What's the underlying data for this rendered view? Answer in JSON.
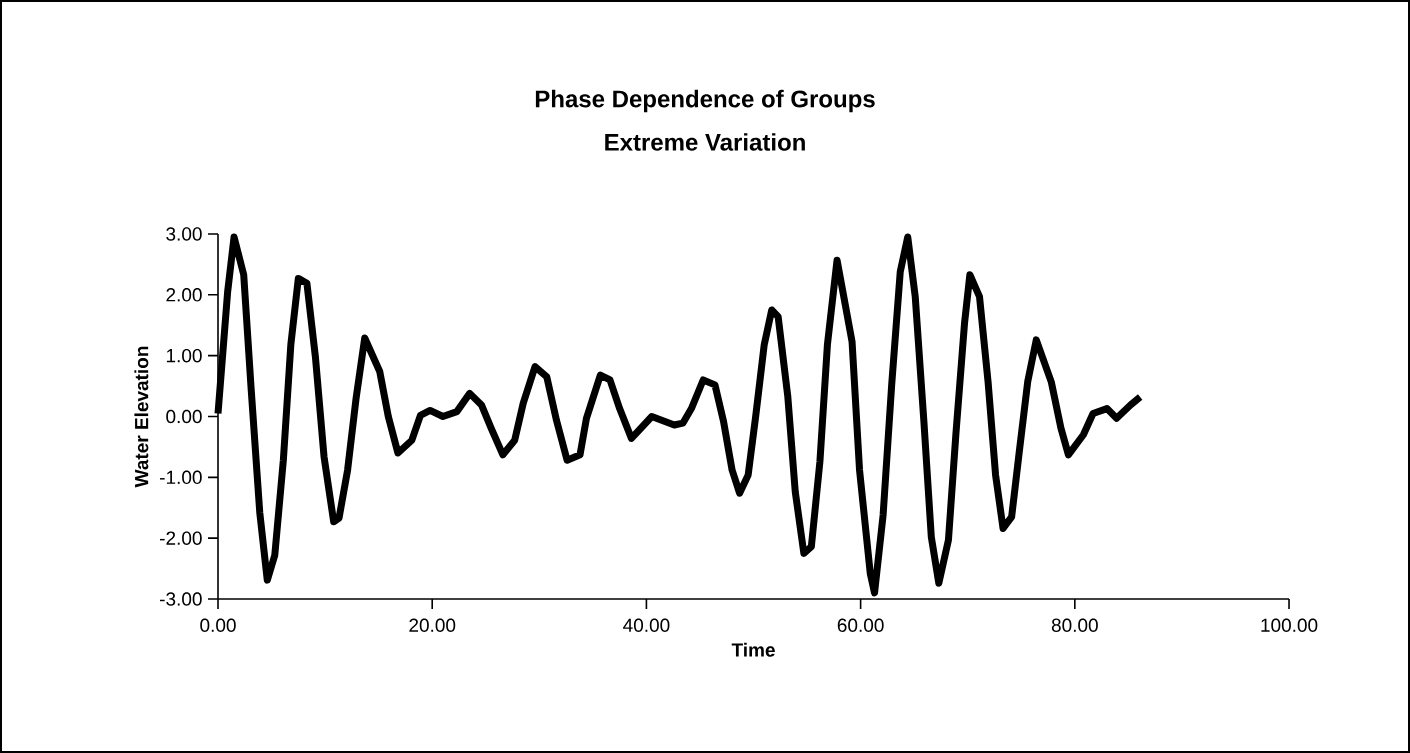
{
  "chart_data": {
    "type": "line",
    "title": "Phase Dependence of Groups",
    "subtitle": "Extreme Variation",
    "xlabel": "Time",
    "ylabel": "Water Elevation",
    "x": [
      0,
      0.9,
      1.5,
      2.4,
      3.1,
      3.9,
      4.6,
      5.3,
      6.1,
      6.8,
      7.5,
      8.3,
      9.1,
      9.9,
      10.8,
      11.3,
      12.1,
      12.9,
      13.7,
      15.1,
      15.9,
      16.8,
      18.1,
      18.9,
      19.8,
      21.0,
      22.3,
      23.5,
      24.6,
      25.5,
      26.6,
      27.7,
      28.5,
      29.6,
      30.7,
      31.6,
      32.6,
      33.8,
      34.4,
      35.7,
      36.6,
      37.5,
      38.6,
      40.5,
      42.6,
      43.4,
      44.2,
      45.3,
      46.4,
      47.2,
      48.0,
      48.7,
      49.5,
      50.2,
      51.0,
      51.7,
      52.3,
      53.2,
      53.9,
      54.7,
      55.4,
      56.2,
      56.9,
      57.8,
      59.2,
      59.9,
      60.9,
      61.3,
      62.1,
      62.9,
      63.7,
      64.4,
      65.1,
      65.9,
      66.6,
      67.3,
      68.2,
      68.9,
      69.7,
      70.2,
      71.1,
      71.9,
      72.6,
      73.3,
      74.1,
      74.8,
      75.6,
      76.4,
      77.8,
      78.7,
      79.4,
      80.8,
      81.7,
      83.0,
      83.9,
      85.2,
      86.1
    ],
    "series": [
      {
        "color": "#000000",
        "values": [
          0.05,
          2.05,
          2.95,
          2.33,
          0.44,
          -1.58,
          -2.69,
          -2.28,
          -0.72,
          1.18,
          2.27,
          2.19,
          0.97,
          -0.66,
          -1.73,
          -1.67,
          -0.88,
          0.31,
          1.29,
          0.74,
          0.0,
          -0.6,
          -0.39,
          0.02,
          0.1,
          0.0,
          0.08,
          0.38,
          0.19,
          -0.19,
          -0.63,
          -0.39,
          0.22,
          0.82,
          0.65,
          -0.06,
          -0.72,
          -0.63,
          -0.03,
          0.68,
          0.6,
          0.13,
          -0.36,
          0.0,
          -0.14,
          -0.11,
          0.13,
          0.6,
          0.52,
          -0.08,
          -0.88,
          -1.26,
          -0.96,
          0.0,
          1.18,
          1.75,
          1.64,
          0.33,
          -1.24,
          -2.25,
          -2.14,
          -0.74,
          1.18,
          2.57,
          1.23,
          -0.88,
          -2.58,
          -2.9,
          -1.62,
          0.52,
          2.38,
          2.95,
          1.97,
          -0.06,
          -1.98,
          -2.74,
          -2.03,
          -0.28,
          1.53,
          2.33,
          1.97,
          0.57,
          -0.96,
          -1.84,
          -1.65,
          -0.6,
          0.57,
          1.26,
          0.57,
          -0.19,
          -0.63,
          -0.3,
          0.05,
          0.13,
          -0.03,
          0.19,
          0.32
        ]
      }
    ],
    "xlim": [
      0,
      100
    ],
    "ylim": [
      -3,
      3
    ],
    "xticks": [
      {
        "value": 0,
        "label": "0.00"
      },
      {
        "value": 20,
        "label": "20.00"
      },
      {
        "value": 40,
        "label": "40.00"
      },
      {
        "value": 60,
        "label": "60.00"
      },
      {
        "value": 80,
        "label": "80.00"
      },
      {
        "value": 100,
        "label": "100.00"
      }
    ],
    "yticks": [
      {
        "value": -3,
        "label": "-3.00"
      },
      {
        "value": -2,
        "label": "-2.00"
      },
      {
        "value": -1,
        "label": "-1.00"
      },
      {
        "value": 0,
        "label": "0.00"
      },
      {
        "value": 1,
        "label": "1.00"
      },
      {
        "value": 2,
        "label": "2.00"
      },
      {
        "value": 3,
        "label": "3.00"
      }
    ],
    "grid": false
  }
}
